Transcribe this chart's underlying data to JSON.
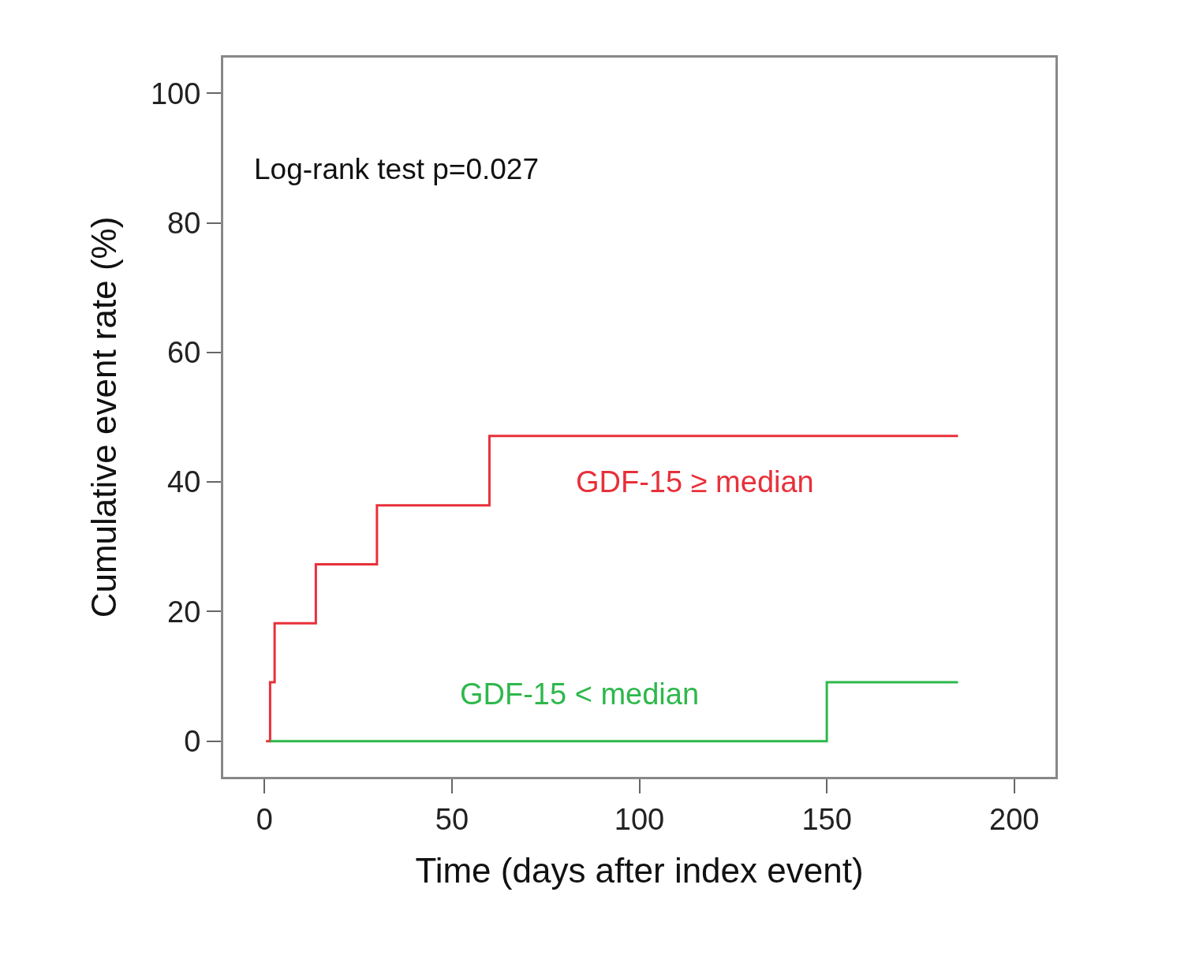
{
  "chart_data": {
    "type": "step",
    "xlabel": "Time (days after index event)",
    "ylabel": "Cumulative event rate (%)",
    "annotations": [
      "Log-rank test p=0.027"
    ],
    "xlim": [
      -11,
      211
    ],
    "xticks": [
      0,
      50,
      100,
      150,
      200
    ],
    "ylim": [
      -5.5,
      105.5
    ],
    "yticks": [
      0,
      20,
      40,
      60,
      80,
      100
    ],
    "grid": false,
    "legend": false,
    "marker": "none",
    "line_style": "solid",
    "series": [
      {
        "name": "GDF-15 ≥ median",
        "color": "#e8303a",
        "x": [
          0.4,
          1.5,
          2.7,
          13.7,
          30,
          60,
          185
        ],
        "values": [
          0,
          9.1,
          18.2,
          27.3,
          36.4,
          47.1,
          47.1
        ]
      },
      {
        "name": "GDF-15 < median",
        "color": "#2eb84c",
        "x": [
          1.5,
          150,
          185
        ],
        "values": [
          0,
          9.1,
          9.1
        ]
      }
    ]
  }
}
